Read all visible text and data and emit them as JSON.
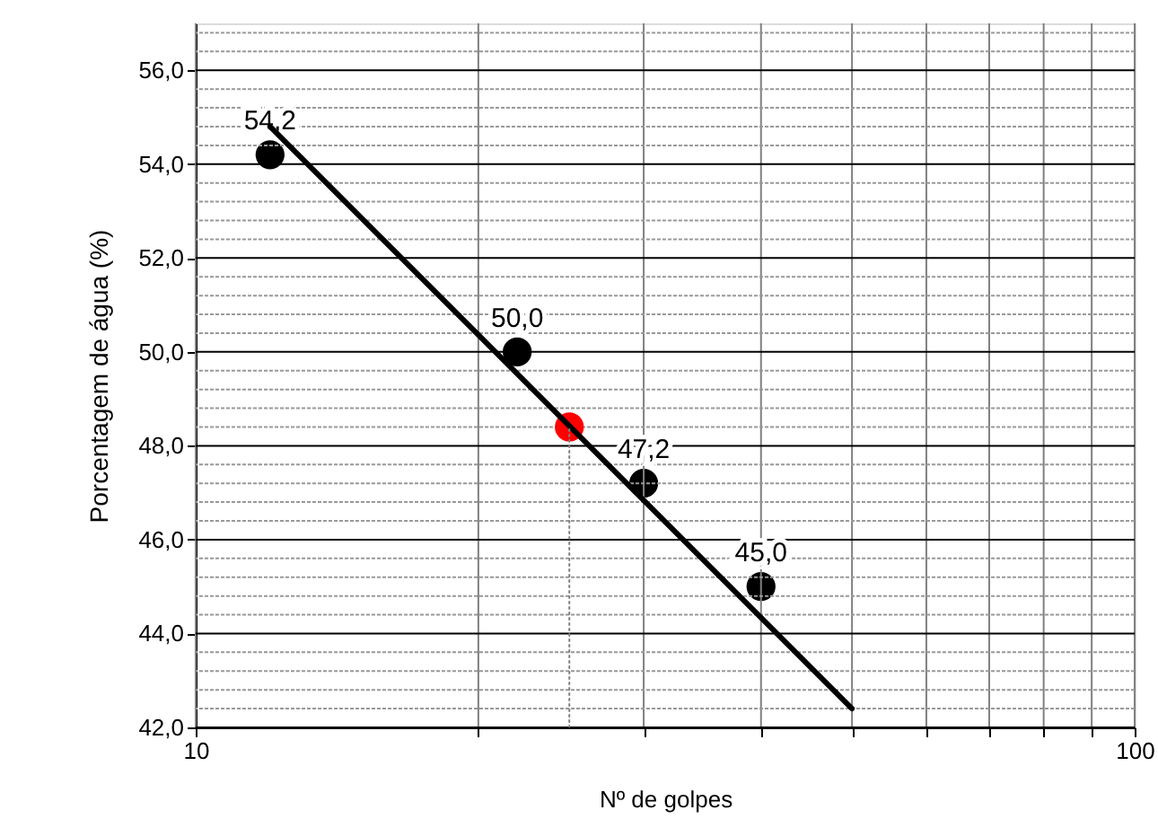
{
  "chart_data": {
    "type": "scatter",
    "xlabel": "Nº de golpes",
    "ylabel": "Porcentagem de água (%)",
    "log": "x",
    "xlim": [
      10,
      100
    ],
    "ylim": [
      42,
      57
    ],
    "grid": true,
    "xticks": [
      10,
      {
        "value": 20,
        "label": null
      },
      {
        "value": 30,
        "label": null
      },
      {
        "value": 40,
        "label": null
      },
      {
        "value": 50,
        "label": null
      },
      {
        "value": 60,
        "label": null
      },
      {
        "value": 70,
        "label": null
      },
      {
        "value": 80,
        "label": null
      },
      {
        "value": 90,
        "label": null
      },
      100
    ],
    "yticks": [
      {
        "value": 42,
        "label": "42,0"
      },
      {
        "value": 42.4,
        "label": null
      },
      {
        "value": 42.8,
        "label": null
      },
      {
        "value": 43.2,
        "label": null
      },
      {
        "value": 43.6,
        "label": null
      },
      {
        "value": 44,
        "label": "44,0"
      },
      {
        "value": 44.4,
        "label": null
      },
      {
        "value": 44.8,
        "label": null
      },
      {
        "value": 45.2,
        "label": null
      },
      {
        "value": 45.6,
        "label": null
      },
      {
        "value": 46,
        "label": "46,0"
      },
      {
        "value": 46.4,
        "label": null
      },
      {
        "value": 46.8,
        "label": null
      },
      {
        "value": 47.2,
        "label": null
      },
      {
        "value": 47.6,
        "label": null
      },
      {
        "value": 48,
        "label": "48,0"
      },
      {
        "value": 48.4,
        "label": null
      },
      {
        "value": 48.8,
        "label": null
      },
      {
        "value": 49.2,
        "label": null
      },
      {
        "value": 49.6,
        "label": null
      },
      {
        "value": 50,
        "label": "50,0"
      },
      {
        "value": 50.4,
        "label": null
      },
      {
        "value": 50.8,
        "label": null
      },
      {
        "value": 51.2,
        "label": null
      },
      {
        "value": 51.6,
        "label": null
      },
      {
        "value": 52,
        "label": "52,0"
      },
      {
        "value": 52.4,
        "label": null
      },
      {
        "value": 52.8,
        "label": null
      },
      {
        "value": 53.2,
        "label": null
      },
      {
        "value": 53.6,
        "label": null
      },
      {
        "value": 54,
        "label": "54,0"
      },
      {
        "value": 54.4,
        "label": null
      },
      {
        "value": 54.8,
        "label": null
      },
      {
        "value": 55.2,
        "label": null
      },
      {
        "value": 55.6,
        "label": null
      },
      {
        "value": 56,
        "label": "56,0"
      },
      {
        "value": 56.4,
        "label": null
      },
      {
        "value": 56.8,
        "label": null
      }
    ],
    "series": [
      {
        "type": "scatter",
        "marker": "circle",
        "color": "#000000",
        "x": [
          12,
          22,
          30,
          40
        ],
        "values": [
          54.2,
          50.0,
          47.2,
          45.0
        ],
        "value_labels": [
          "54,2",
          "50,0",
          "47,2",
          "45,0"
        ]
      },
      {
        "type": "scatter",
        "marker": "circle",
        "color": "#ff0000",
        "x": [
          25
        ],
        "values": [
          48.4
        ]
      },
      {
        "type": "line",
        "marker": "none",
        "line_style": "solid",
        "color": "#000000",
        "x": [
          12,
          50
        ],
        "values": [
          54.8,
          42.4
        ]
      },
      {
        "type": "line",
        "marker": "none",
        "line_style": "dotted",
        "color": "#808080",
        "x": [
          25,
          25
        ],
        "values": [
          42,
          48.4
        ]
      }
    ]
  }
}
